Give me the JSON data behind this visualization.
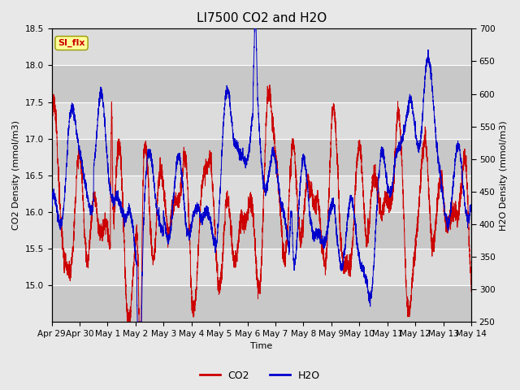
{
  "title": "LI7500 CO2 and H2O",
  "xlabel": "Time",
  "ylabel_left": "CO2 Density (mmol/m3)",
  "ylabel_right": "H2O Density (mmol/m3)",
  "ylim_left": [
    14.5,
    18.5
  ],
  "ylim_right": [
    250,
    700
  ],
  "co2_color": "#cc0000",
  "h2o_color": "#0000cc",
  "bg_color": "#e8e8e8",
  "plot_bg_color": "#d4d4d4",
  "band_color_light": "#dcdcdc",
  "band_color_dark": "#c8c8c8",
  "annotation_text": "SI_flx",
  "annotation_bg": "#ffff99",
  "annotation_border": "#999900",
  "annotation_fg": "#cc0000",
  "legend_co2": "CO2",
  "legend_h2o": "H2O",
  "xtick_labels": [
    "Apr 29",
    "Apr 30",
    "May 1",
    "May 2",
    "May 3",
    "May 4",
    "May 5",
    "May 6",
    "May 7",
    "May 8",
    "May 9",
    "May 10",
    "May 11",
    "May 12",
    "May 13",
    "May 14"
  ],
  "yticks_left": [
    15.0,
    15.5,
    16.0,
    16.5,
    17.0,
    17.5,
    18.0,
    18.5
  ],
  "yticks_right": [
    250,
    300,
    350,
    400,
    450,
    500,
    550,
    600,
    650,
    700
  ],
  "n_points": 5000,
  "seed": 7,
  "title_fontsize": 11,
  "axis_label_fontsize": 8,
  "tick_fontsize": 7.5
}
